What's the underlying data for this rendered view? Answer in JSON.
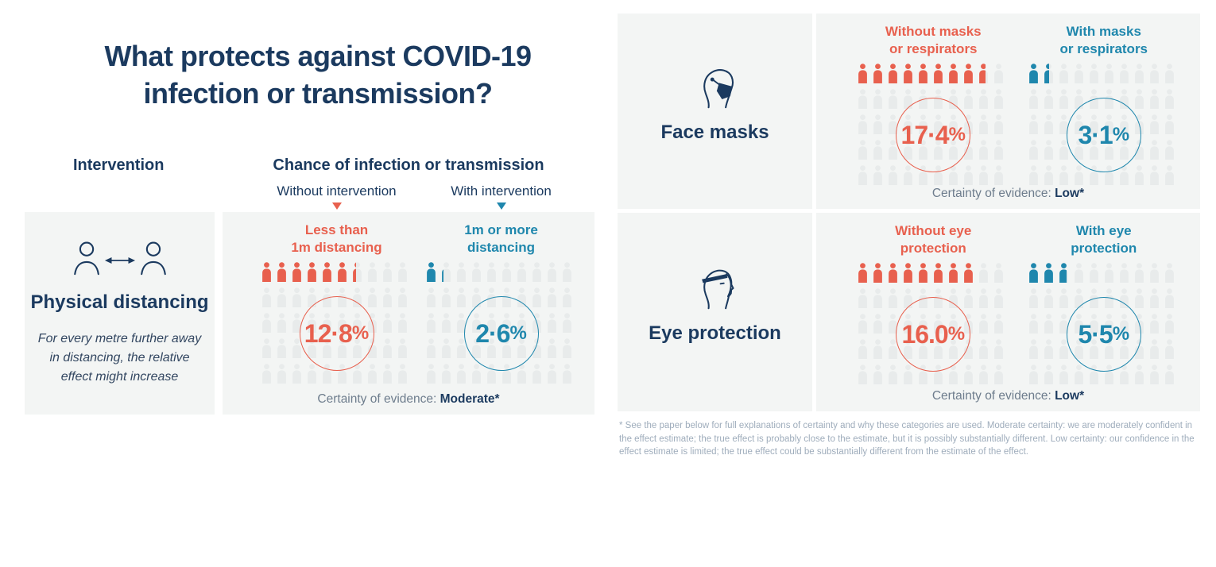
{
  "title": {
    "line1": "What protects against COVID-19",
    "line2": "infection or transmission?"
  },
  "headers": {
    "intervention": "Intervention",
    "chance": "Chance of infection or transmission",
    "without_sub": "Without intervention",
    "with_sub": "With intervention"
  },
  "colors": {
    "navy": "#1b3a5f",
    "red": "#e8604e",
    "teal": "#1f87ad",
    "gray": "#e8ebeb",
    "panel": "#f3f5f4",
    "muted": "#6e7d8d",
    "footnote": "#9fadbc"
  },
  "grid": {
    "rows": 5,
    "cols": 10,
    "total_persons": 50,
    "percent_per_person": 2
  },
  "interventions": [
    {
      "id": "distancing",
      "label": "Physical distancing",
      "icon": "physical-distancing-icon",
      "note": "For every metre further away in distancing, the relative effect might increase",
      "certainty_label": "Certainty of evidence:",
      "certainty_value": "Moderate*",
      "without": {
        "heading_line1": "Less than",
        "heading_line2": "1m distancing",
        "value": 12.8,
        "display": "12·8%"
      },
      "with": {
        "heading_line1": "1m or more",
        "heading_line2": "distancing",
        "value": 2.6,
        "display": "2·6%"
      }
    },
    {
      "id": "masks",
      "label": "Face masks",
      "icon": "face-mask-icon",
      "note": "",
      "certainty_label": "Certainty of evidence:",
      "certainty_value": "Low*",
      "without": {
        "heading_line1": "Without masks",
        "heading_line2": "or respirators",
        "value": 17.4,
        "display": "17·4%"
      },
      "with": {
        "heading_line1": "With masks",
        "heading_line2": "or respirators",
        "value": 3.1,
        "display": "3·1%"
      }
    },
    {
      "id": "eye",
      "label": "Eye protection",
      "icon": "eye-protection-icon",
      "note": "",
      "certainty_label": "Certainty of evidence:",
      "certainty_value": "Low*",
      "without": {
        "heading_line1": "Without eye",
        "heading_line2": "protection",
        "value": 16.0,
        "display": "16.0%"
      },
      "with": {
        "heading_line1": "With eye",
        "heading_line2": "protection",
        "value": 5.5,
        "display": "5·5%"
      }
    }
  ],
  "footnote": "* See the paper below for full explanations of certainty and why these categories are used. Moderate certainty: we are moderately confident in the effect estimate; the true effect is probably close to the estimate, but it is possibly substantially different. Low certainty: our confidence in the effect estimate is limited; the true effect could be substantially different from the estimate of the effect.",
  "chart_data": {
    "type": "bar",
    "title": "What protects against COVID-19 infection or transmission?",
    "xlabel": "Intervention",
    "ylabel": "Chance of infection or transmission (%)",
    "categories": [
      "Physical distancing (less than 1m vs 1m or more)",
      "Face masks or respirators",
      "Eye protection"
    ],
    "series": [
      {
        "name": "Without intervention",
        "values": [
          12.8,
          17.4,
          16.0
        ],
        "color": "#e8604e"
      },
      {
        "name": "With intervention",
        "values": [
          2.6,
          3.1,
          5.5
        ],
        "color": "#1f87ad"
      }
    ],
    "certainty_of_evidence": [
      "Moderate*",
      "Low*",
      "Low*"
    ],
    "pictogram_total_persons": 50,
    "legend_position": "column-headers",
    "grid": false
  }
}
